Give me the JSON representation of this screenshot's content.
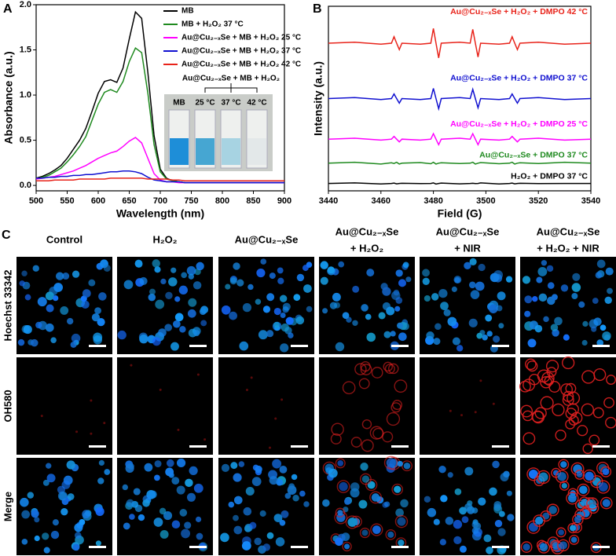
{
  "chart_data": [
    {
      "type": "line",
      "panel_label": "A",
      "xlabel": "Wavelength (nm)",
      "ylabel": "Absorbance (a.u.)",
      "x": [
        500,
        510,
        520,
        530,
        540,
        550,
        560,
        570,
        580,
        590,
        600,
        610,
        620,
        630,
        640,
        650,
        660,
        670,
        680,
        690,
        700,
        710,
        720,
        730,
        740,
        750,
        760,
        770,
        780,
        790,
        800,
        810,
        820,
        830,
        840,
        850,
        860,
        870,
        880,
        890,
        900
      ],
      "xlim": [
        500,
        900
      ],
      "xticks": [
        500,
        550,
        600,
        650,
        700,
        750,
        800,
        850,
        900
      ],
      "ylim": [
        -0.06,
        2.0
      ],
      "yticks": [
        {
          "value": 0,
          "label": "0.0"
        },
        0.5,
        {
          "value": 1,
          "label": "1.0"
        },
        1.5,
        {
          "value": 2,
          "label": "2.0"
        }
      ],
      "legend": "upper right",
      "series": [
        {
          "name": "MB",
          "color": "#000000",
          "values": [
            0.08,
            0.1,
            0.13,
            0.17,
            0.22,
            0.3,
            0.4,
            0.5,
            0.63,
            0.82,
            1.02,
            1.15,
            1.17,
            1.14,
            1.3,
            1.62,
            1.92,
            1.85,
            1.25,
            0.55,
            0.18,
            0.08,
            0.05,
            0.04,
            0.03,
            0.03,
            0.03,
            0.03,
            0.03,
            0.03,
            0.03,
            0.03,
            0.03,
            0.03,
            0.03,
            0.03,
            0.03,
            0.03,
            0.03,
            0.03,
            0.03
          ]
        },
        {
          "name": "MB + H₂O₂  37 °C",
          "color": "#1f8a1f",
          "values": [
            0.07,
            0.09,
            0.11,
            0.15,
            0.19,
            0.26,
            0.34,
            0.43,
            0.54,
            0.72,
            0.9,
            1.03,
            1.06,
            1.03,
            1.15,
            1.37,
            1.52,
            1.47,
            1.02,
            0.45,
            0.15,
            0.07,
            0.05,
            0.04,
            0.03,
            0.03,
            0.03,
            0.03,
            0.03,
            0.03,
            0.03,
            0.03,
            0.03,
            0.03,
            0.03,
            0.03,
            0.03,
            0.03,
            0.03,
            0.03,
            0.03
          ]
        },
        {
          "name": "Au@Cu₂₋ₓSe + MB + H₂O₂  25 °C",
          "color": "#ff00ff",
          "values": [
            0.07,
            0.08,
            0.09,
            0.1,
            0.12,
            0.14,
            0.16,
            0.19,
            0.22,
            0.26,
            0.3,
            0.33,
            0.36,
            0.38,
            0.43,
            0.49,
            0.53,
            0.47,
            0.3,
            0.13,
            0.06,
            0.04,
            0.04,
            0.03,
            0.03,
            0.03,
            0.03,
            0.03,
            0.03,
            0.03,
            0.03,
            0.03,
            0.03,
            0.03,
            0.03,
            0.03,
            0.03,
            0.03,
            0.03,
            0.03,
            0.03
          ]
        },
        {
          "name": "Au@Cu₂₋ₓSe + MB + H₂O₂  37 °C",
          "color": "#1010d0",
          "values": [
            0.08,
            0.08,
            0.09,
            0.09,
            0.1,
            0.1,
            0.11,
            0.11,
            0.12,
            0.12,
            0.13,
            0.14,
            0.15,
            0.15,
            0.16,
            0.16,
            0.15,
            0.13,
            0.09,
            0.06,
            0.05,
            0.04,
            0.04,
            0.04,
            0.03,
            0.03,
            0.03,
            0.03,
            0.03,
            0.03,
            0.03,
            0.03,
            0.03,
            0.03,
            0.03,
            0.03,
            0.03,
            0.03,
            0.03,
            0.03,
            0.03
          ]
        },
        {
          "name": "Au@Cu₂₋ₓSe + MB + H₂O₂  42 °C",
          "color": "#e8231a",
          "values": [
            0.05,
            0.05,
            0.05,
            0.06,
            0.06,
            0.06,
            0.06,
            0.07,
            0.07,
            0.07,
            0.07,
            0.07,
            0.08,
            0.08,
            0.08,
            0.08,
            0.08,
            0.08,
            0.07,
            0.07,
            0.07,
            0.07,
            0.06,
            0.06,
            0.05,
            0.05,
            0.05,
            0.05,
            0.05,
            0.05,
            0.05,
            0.05,
            0.05,
            0.05,
            0.05,
            0.05,
            0.05,
            0.05,
            0.05,
            0.05,
            0.05
          ]
        }
      ],
      "inset": {
        "title": "Au@Cu₂₋ₓSe + MB + H₂O₂",
        "labels": [
          "MB",
          "25 °C",
          "37 °C",
          "42 °C"
        ]
      }
    },
    {
      "type": "line",
      "panel_label": "B",
      "xlabel": "Field (G)",
      "ylabel": "Intensity (a.u.)",
      "x": [
        3440,
        3450,
        3460,
        3464,
        3465,
        3466,
        3467,
        3468,
        3475,
        3479,
        3480,
        3481,
        3482,
        3483,
        3490,
        3494,
        3495,
        3496,
        3497,
        3498,
        3505,
        3509,
        3510,
        3511,
        3512,
        3513,
        3520,
        3530,
        3540
      ],
      "xlim": [
        3440,
        3540
      ],
      "xticks": [
        3440,
        3460,
        3480,
        3500,
        3520,
        3540
      ],
      "ylim": [
        0,
        10
      ],
      "series": [
        {
          "name": "Au@Cu₂₋ₓSe + H₂O₂ + DMPO  42 °C",
          "color": "#e8231a",
          "values": [
            8.0,
            8.05,
            7.95,
            8.0,
            8.35,
            8.0,
            7.65,
            8.0,
            7.95,
            8.0,
            8.8,
            8.0,
            7.2,
            8.0,
            8.05,
            8.0,
            8.75,
            8.0,
            7.25,
            8.0,
            7.95,
            8.0,
            8.35,
            8.0,
            7.65,
            8.0,
            8.05,
            7.95,
            8.0
          ]
        },
        {
          "name": "Au@Cu₂₋ₓSe + H₂O₂ + DMPO  37 °C",
          "color": "#1010d0",
          "values": [
            5.0,
            5.05,
            4.95,
            5.0,
            5.25,
            5.0,
            4.75,
            5.0,
            4.95,
            5.0,
            5.55,
            5.0,
            4.45,
            5.0,
            5.05,
            5.0,
            5.5,
            5.0,
            4.5,
            5.0,
            4.95,
            5.0,
            5.25,
            5.0,
            4.75,
            5.0,
            5.05,
            4.95,
            5.0
          ]
        },
        {
          "name": "Au@Cu₂₋ₓSe + H₂O₂ + DMPO  25 °C",
          "color": "#ff00ff",
          "values": [
            2.8,
            2.85,
            2.75,
            2.8,
            2.95,
            2.8,
            2.65,
            2.8,
            2.75,
            2.8,
            3.1,
            2.8,
            2.5,
            2.8,
            2.85,
            2.8,
            3.1,
            2.8,
            2.5,
            2.8,
            2.75,
            2.8,
            2.95,
            2.8,
            2.65,
            2.8,
            2.85,
            2.75,
            2.8
          ]
        },
        {
          "name": "Au@Cu₂₋ₓSe + DMPO  37 °C",
          "color": "#1f8a1f",
          "values": [
            1.5,
            1.55,
            1.45,
            1.52,
            1.48,
            1.55,
            1.45,
            1.5,
            1.53,
            1.47,
            1.55,
            1.45,
            1.5,
            1.52,
            1.48,
            1.5,
            1.55,
            1.45,
            1.5,
            1.53,
            1.47,
            1.5,
            1.55,
            1.45,
            1.5,
            1.52,
            1.48,
            1.55,
            1.5
          ]
        },
        {
          "name": "H₂O₂ + DMPO  37 °C",
          "color": "#000000",
          "values": [
            0.4,
            0.43,
            0.37,
            0.4,
            0.42,
            0.38,
            0.4,
            0.41,
            0.39,
            0.4,
            0.43,
            0.37,
            0.4,
            0.42,
            0.38,
            0.4,
            0.41,
            0.39,
            0.4,
            0.43,
            0.37,
            0.4,
            0.42,
            0.38,
            0.4,
            0.41,
            0.39,
            0.4,
            0.4
          ]
        }
      ]
    }
  ],
  "panel_c": {
    "panel_label": "C",
    "columns": [
      [
        "Control"
      ],
      [
        "H₂O₂"
      ],
      [
        "Au@Cu₂₋ₓSe"
      ],
      [
        "Au@Cu₂₋ₓSe",
        "+ H₂O₂"
      ],
      [
        "Au@Cu₂₋ₓSe",
        "+ NIR"
      ],
      [
        "Au@Cu₂₋ₓSe",
        "+ H₂O₂ + NIR"
      ]
    ],
    "rows": [
      "Hoechst 33342",
      "OH580",
      "Merge"
    ]
  }
}
